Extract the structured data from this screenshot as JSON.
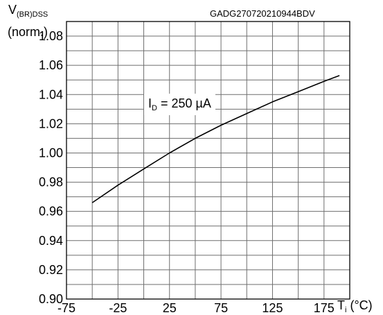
{
  "chart_data": {
    "type": "line",
    "code": "GADG270720210944BDV",
    "ylabel_main": "V",
    "ylabel_sub": "(BR)DSS",
    "ylabel_unit": "(norm.)",
    "xlabel_main": "T",
    "xlabel_sub": "i",
    "xlabel_unit": " (°C)",
    "annotation_main": "I",
    "annotation_sub": "D",
    "annotation_rest": " = 250 µA",
    "xlim": [
      -75,
      200
    ],
    "ylim": [
      0.9,
      1.09
    ],
    "x_ticks": [
      -75,
      -25,
      25,
      75,
      125,
      175
    ],
    "x_tick_labels": [
      "-75",
      "-25",
      "25",
      "75",
      "125",
      "175"
    ],
    "x_grid_step": 25,
    "y_ticks": [
      0.9,
      0.92,
      0.94,
      0.96,
      0.98,
      1.0,
      1.02,
      1.04,
      1.06,
      1.08
    ],
    "y_tick_labels": [
      "0.90",
      "0.92",
      "0.94",
      "0.96",
      "0.98",
      "1.00",
      "1.02",
      "1.04",
      "1.06",
      "1.08"
    ],
    "y_grid_step": 0.01,
    "grid": true,
    "series": [
      {
        "x": [
          -50,
          -25,
          0,
          25,
          50,
          75,
          100,
          125,
          150,
          175,
          190
        ],
        "y": [
          0.966,
          0.978,
          0.989,
          1.0,
          1.01,
          1.019,
          1.027,
          1.035,
          1.042,
          1.049,
          1.053
        ]
      }
    ]
  },
  "colors": {
    "grid": "#6e6e6e",
    "line": "#000000",
    "axis": "#000000"
  }
}
